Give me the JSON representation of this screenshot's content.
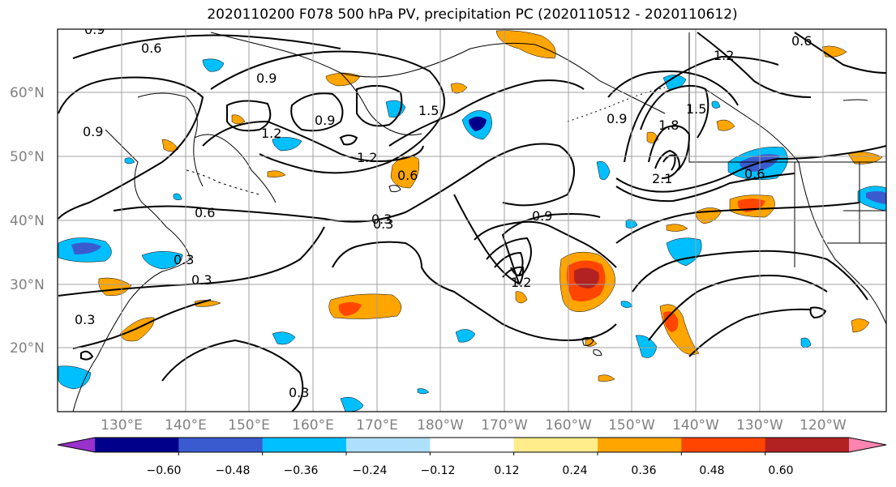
{
  "title": "2020110200 F078 500 hPa PV, precipitation PC (2020110512 - 2020110612)",
  "lat_labels": [
    "60°N",
    "50°N",
    "40°N",
    "30°N",
    "20°N"
  ],
  "lon_labels": [
    "130°E",
    "140°E",
    "150°E",
    "160°E",
    "170°E",
    "180°W",
    "170°W",
    "160°W",
    "150°W",
    "140°W",
    "130°W",
    "120°W"
  ],
  "colorbar": {
    "tick_labels": [
      "−0.60",
      "−0.48",
      "−0.36",
      "−0.24",
      "−0.12",
      "0.12",
      "0.24",
      "0.36",
      "0.48",
      "0.60"
    ],
    "colors": [
      "#9932cc",
      "#00008b",
      "#3a5bcf",
      "#00bfff",
      "#afe0fb",
      "#ffffff",
      "#ffec8b",
      "#ffa500",
      "#ff4500",
      "#b22222",
      "#ff85b0"
    ]
  },
  "contour_labels": [
    "0.9",
    "0.6",
    "0.9",
    "1.2",
    "0.9",
    "1.5",
    "1.2",
    "0.6",
    "0.3",
    "0.6",
    "0.3",
    "0.3",
    "0.3",
    "0.3",
    "0.9",
    "1.2",
    "0.6",
    "0.9",
    "1.2",
    "1.5",
    "1.8",
    "2.1",
    "0.6",
    "0.9",
    "0.3"
  ]
}
